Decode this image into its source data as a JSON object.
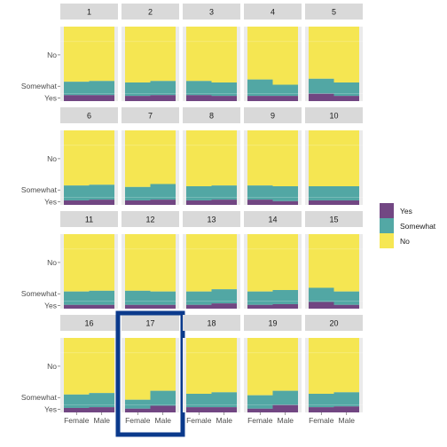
{
  "chart_data": {
    "type": "bar",
    "layout": "small-multiples-stacked",
    "panels": [
      {
        "label": "1",
        "female": {
          "yes": 0.08,
          "somewhat": 0.18
        },
        "male": {
          "yes": 0.08,
          "somewhat": 0.19
        }
      },
      {
        "label": "2",
        "female": {
          "yes": 0.07,
          "somewhat": 0.18
        },
        "male": {
          "yes": 0.08,
          "somewhat": 0.19
        }
      },
      {
        "label": "3",
        "female": {
          "yes": 0.08,
          "somewhat": 0.19
        },
        "male": {
          "yes": 0.07,
          "somewhat": 0.18
        }
      },
      {
        "label": "4",
        "female": {
          "yes": 0.07,
          "somewhat": 0.22
        },
        "male": {
          "yes": 0.07,
          "somewhat": 0.15
        }
      },
      {
        "label": "5",
        "female": {
          "yes": 0.1,
          "somewhat": 0.2
        },
        "male": {
          "yes": 0.07,
          "somewhat": 0.18
        }
      },
      {
        "label": "6",
        "female": {
          "yes": 0.06,
          "somewhat": 0.2
        },
        "male": {
          "yes": 0.07,
          "somewhat": 0.2
        }
      },
      {
        "label": "7",
        "female": {
          "yes": 0.06,
          "somewhat": 0.18
        },
        "male": {
          "yes": 0.07,
          "somewhat": 0.21
        }
      },
      {
        "label": "8",
        "female": {
          "yes": 0.06,
          "somewhat": 0.19
        },
        "male": {
          "yes": 0.07,
          "somewhat": 0.19
        }
      },
      {
        "label": "9",
        "female": {
          "yes": 0.07,
          "somewhat": 0.19
        },
        "male": {
          "yes": 0.05,
          "somewhat": 0.2
        }
      },
      {
        "label": "10",
        "female": {
          "yes": 0.06,
          "somewhat": 0.19
        },
        "male": {
          "yes": 0.06,
          "somewhat": 0.19
        }
      },
      {
        "label": "11",
        "female": {
          "yes": 0.05,
          "somewhat": 0.18
        },
        "male": {
          "yes": 0.05,
          "somewhat": 0.19
        }
      },
      {
        "label": "12",
        "female": {
          "yes": 0.05,
          "somewhat": 0.19
        },
        "male": {
          "yes": 0.05,
          "somewhat": 0.18
        }
      },
      {
        "label": "13",
        "female": {
          "yes": 0.05,
          "somewhat": 0.18
        },
        "male": {
          "yes": 0.07,
          "somewhat": 0.19
        }
      },
      {
        "label": "14",
        "female": {
          "yes": 0.05,
          "somewhat": 0.18
        },
        "male": {
          "yes": 0.06,
          "somewhat": 0.19
        }
      },
      {
        "label": "15",
        "female": {
          "yes": 0.09,
          "somewhat": 0.19
        },
        "male": {
          "yes": 0.05,
          "somewhat": 0.18
        }
      },
      {
        "label": "16",
        "female": {
          "yes": 0.06,
          "somewhat": 0.18
        },
        "male": {
          "yes": 0.07,
          "somewhat": 0.19
        }
      },
      {
        "label": "17",
        "female": {
          "yes": 0.05,
          "somewhat": 0.12
        },
        "male": {
          "yes": 0.09,
          "somewhat": 0.2
        }
      },
      {
        "label": "18",
        "female": {
          "yes": 0.07,
          "somewhat": 0.18
        },
        "male": {
          "yes": 0.07,
          "somewhat": 0.2
        }
      },
      {
        "label": "19",
        "female": {
          "yes": 0.05,
          "somewhat": 0.18
        },
        "male": {
          "yes": 0.1,
          "somewhat": 0.19
        }
      },
      {
        "label": "20",
        "female": {
          "yes": 0.07,
          "somewhat": 0.18
        },
        "male": {
          "yes": 0.08,
          "somewhat": 0.19
        }
      }
    ],
    "categories": [
      "Female",
      "Male"
    ],
    "y_ticks": [
      "No",
      "Somewhat",
      "Yes"
    ],
    "legend": {
      "position": "right",
      "entries": [
        "Yes",
        "Somewhat",
        "No"
      ]
    },
    "colors": {
      "Yes": "#6a3d7c",
      "Somewhat": "#4aa3a0",
      "No": "#f5e64a",
      "strip": "#d9d9d9",
      "highlight": "#0b3a8c"
    },
    "highlighted_panel": "17"
  }
}
